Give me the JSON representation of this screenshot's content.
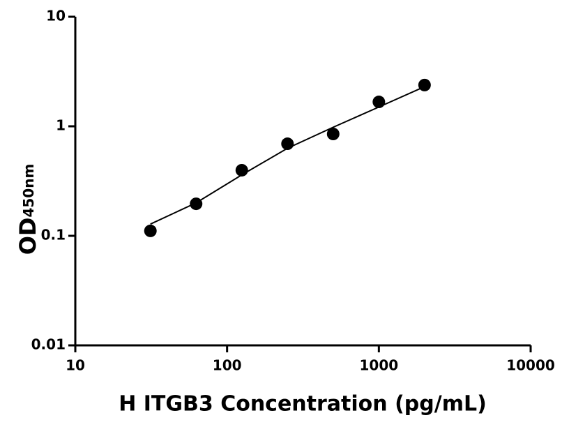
{
  "chart_data": {
    "type": "scatter",
    "xlabel": "H ITGB3 Concentration (pg/mL)",
    "ylabel": "OD",
    "ylabel_sub": "450nm",
    "x": [
      31.25,
      62.5,
      125,
      250,
      500,
      1000,
      2000
    ],
    "values": [
      0.111,
      0.196,
      0.397,
      0.693,
      0.851,
      1.67,
      2.38
    ],
    "color": "#000000",
    "fit": {
      "x": [
        31.25,
        62.5,
        125,
        250,
        500,
        1000,
        2000
      ],
      "values": [
        0.128,
        0.2,
        0.36,
        0.63,
        0.98,
        1.5,
        2.3
      ],
      "color": "#000000"
    },
    "xscale": "log",
    "yscale": "log",
    "xlim": [
      10,
      10000
    ],
    "ylim": [
      0.01,
      10
    ],
    "xticks": [
      10,
      100,
      1000,
      10000
    ],
    "yticks": [
      0.01,
      0.1,
      1,
      10
    ]
  }
}
